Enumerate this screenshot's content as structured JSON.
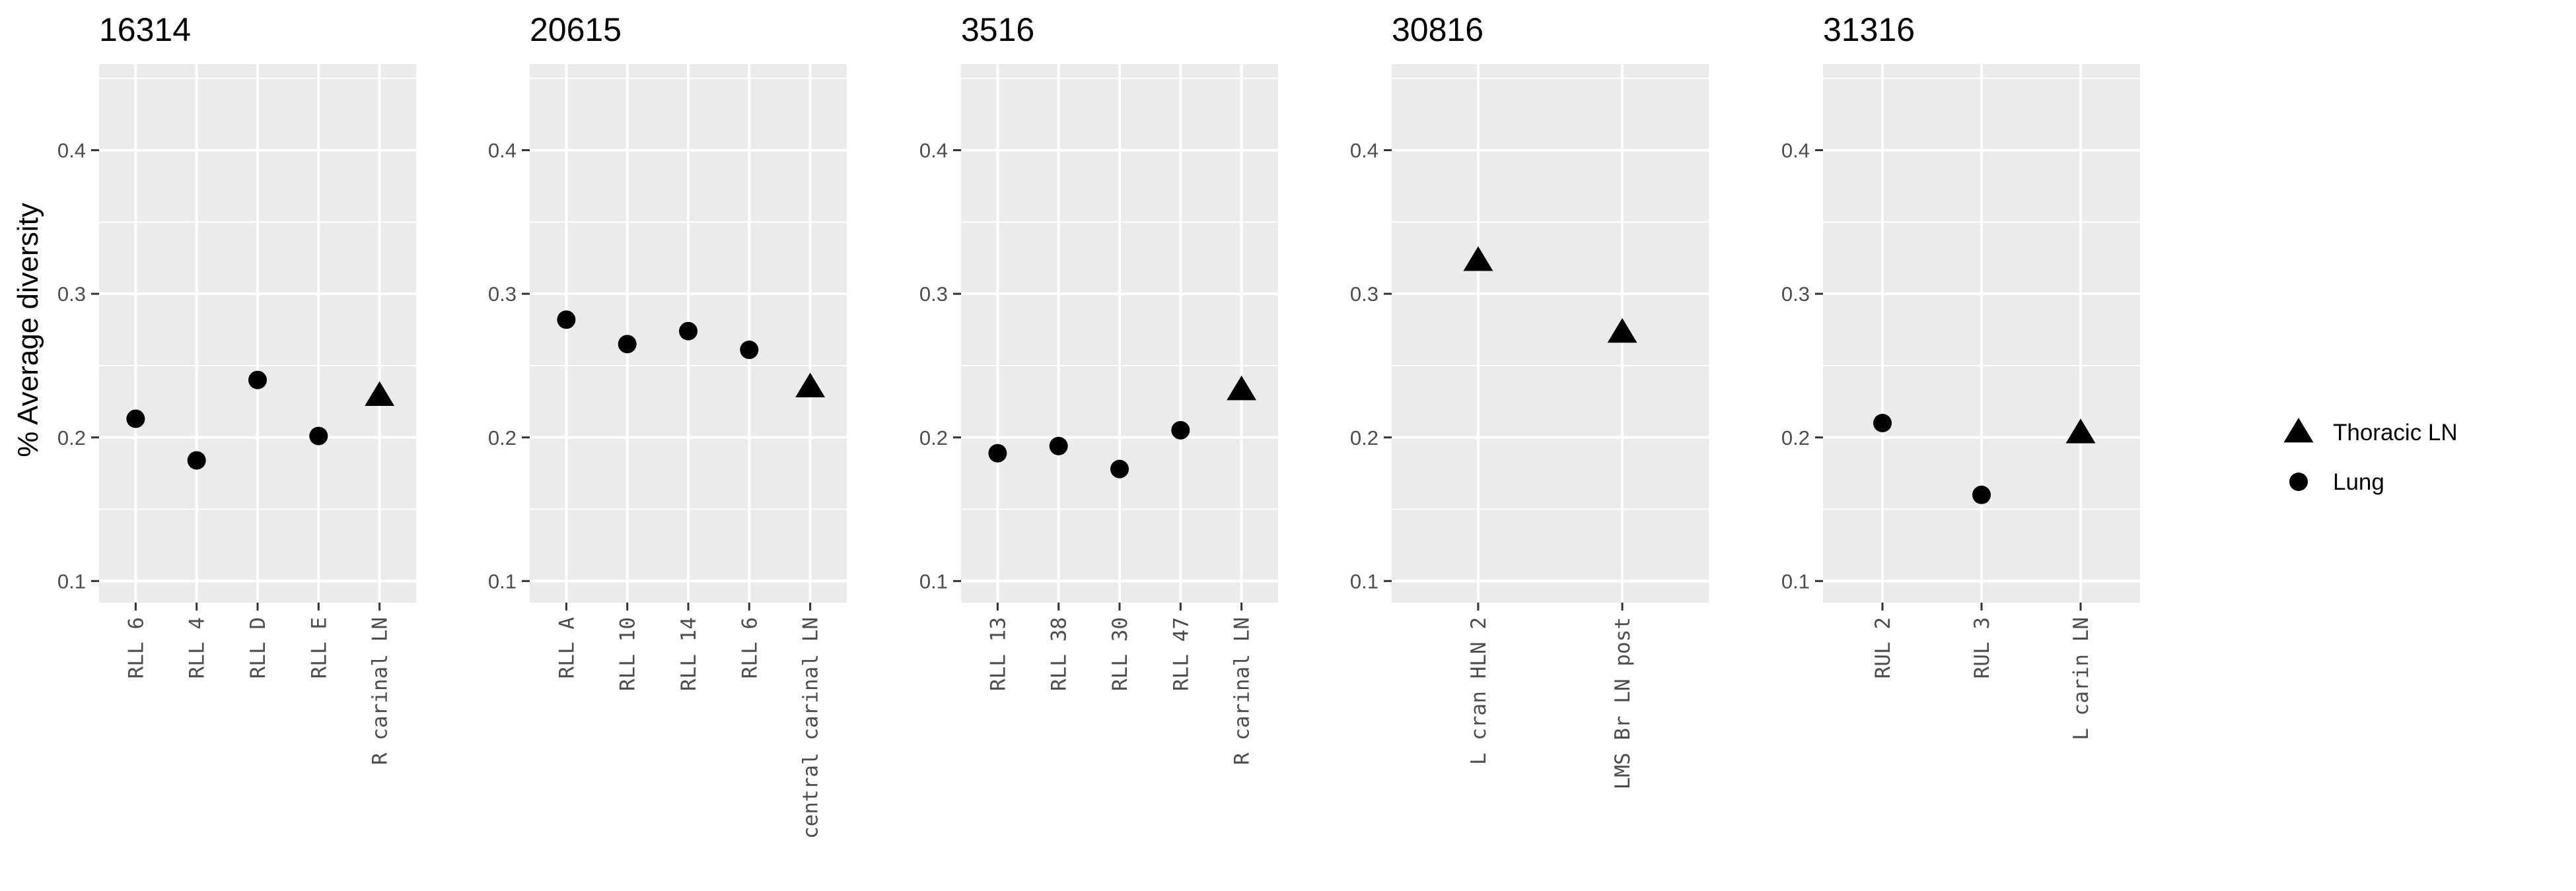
{
  "chart_data": {
    "type": "scatter",
    "ylabel": "% Average diversity",
    "xlabel": "",
    "ylim": [
      0.085,
      0.46
    ],
    "yticks": [
      0.1,
      0.2,
      0.3,
      0.4
    ],
    "grid": true,
    "legend_position": "right",
    "legend": [
      {
        "label": "Thoracic LN",
        "shape": "triangle"
      },
      {
        "label": "Lung",
        "shape": "circle"
      }
    ],
    "panels": [
      {
        "title": "16314",
        "categories": [
          "RLL 6",
          "RLL 4",
          "RLL D",
          "RLL E",
          "R carinal LN"
        ],
        "values": [
          0.213,
          0.184,
          0.24,
          0.201,
          0.229
        ],
        "shapes": [
          "circle",
          "circle",
          "circle",
          "circle",
          "triangle"
        ]
      },
      {
        "title": "20615",
        "categories": [
          "RLL A",
          "RLL 10",
          "RLL 14",
          "RLL 6",
          "central carinal LN"
        ],
        "values": [
          0.282,
          0.265,
          0.274,
          0.261,
          0.235
        ],
        "shapes": [
          "circle",
          "circle",
          "circle",
          "circle",
          "triangle"
        ]
      },
      {
        "title": "3516",
        "categories": [
          "RLL 13",
          "RLL 38",
          "RLL 30",
          "RLL 47",
          "R carinal LN"
        ],
        "values": [
          0.189,
          0.194,
          0.178,
          0.205,
          0.233
        ],
        "shapes": [
          "circle",
          "circle",
          "circle",
          "circle",
          "triangle"
        ]
      },
      {
        "title": "30816",
        "categories": [
          "L cran HLN 2",
          "LMS Br LN post"
        ],
        "values": [
          0.323,
          0.273
        ],
        "shapes": [
          "triangle",
          "triangle"
        ]
      },
      {
        "title": "31316",
        "categories": [
          "RUL 2",
          "RUL 3",
          "L carin LN"
        ],
        "values": [
          0.21,
          0.16,
          0.203
        ],
        "shapes": [
          "circle",
          "circle",
          "triangle"
        ]
      }
    ]
  }
}
